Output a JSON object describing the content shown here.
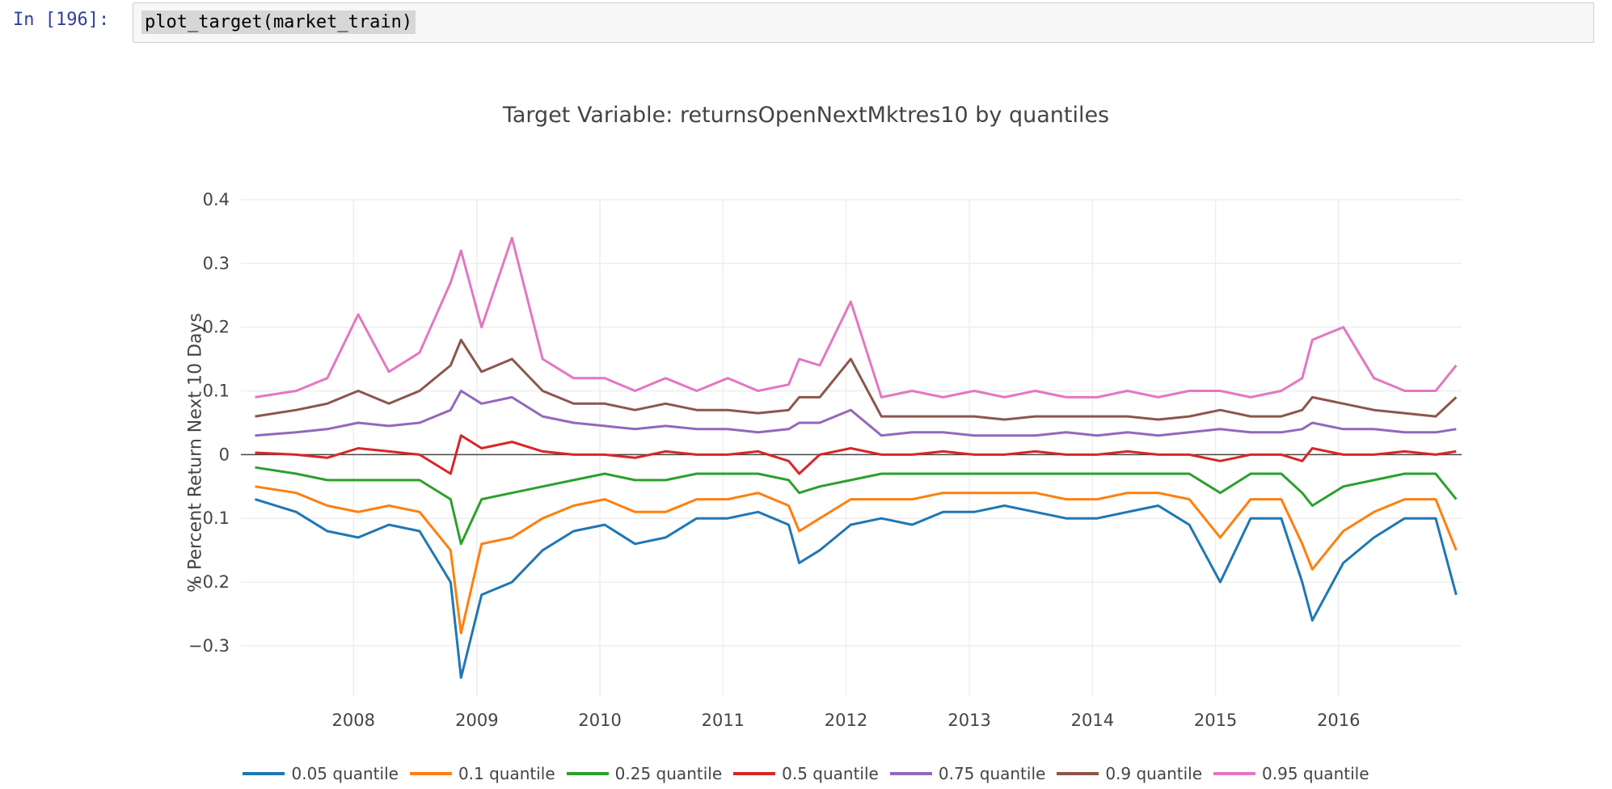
{
  "notebook": {
    "prompt": "In [196]:",
    "code": "plot_target(market_train)"
  },
  "chart_data": {
    "type": "line",
    "title": "Target Variable: returnsOpenNextMktres10 by quantiles",
    "xlabel": "",
    "ylabel": "% Percent Return Next 10 Days",
    "xlim": [
      "2007-02-01",
      "2016-12-31"
    ],
    "ylim": [
      -0.38,
      0.4
    ],
    "xticks": [
      "2008",
      "2009",
      "2010",
      "2011",
      "2012",
      "2013",
      "2014",
      "2015",
      "2016"
    ],
    "yticks": [
      "0.4",
      "0.3",
      "0.2",
      "0.1",
      "0",
      "−0.1",
      "−0.2",
      "−0.3"
    ],
    "ytick_values": [
      0.4,
      0.3,
      0.2,
      0.1,
      0,
      -0.1,
      -0.2,
      -0.3
    ],
    "grid": true,
    "legend_position": "bottom",
    "x": [
      "2007-03",
      "2007-07",
      "2007-10",
      "2008-01",
      "2008-04",
      "2008-07",
      "2008-10",
      "2008-11",
      "2009-01",
      "2009-04",
      "2009-07",
      "2009-10",
      "2010-01",
      "2010-04",
      "2010-07",
      "2010-10",
      "2011-01",
      "2011-04",
      "2011-07",
      "2011-08",
      "2011-10",
      "2012-01",
      "2012-04",
      "2012-07",
      "2012-10",
      "2013-01",
      "2013-04",
      "2013-07",
      "2013-10",
      "2014-01",
      "2014-04",
      "2014-07",
      "2014-10",
      "2015-01",
      "2015-04",
      "2015-07",
      "2015-09",
      "2015-10",
      "2016-01",
      "2016-04",
      "2016-07",
      "2016-10",
      "2016-12"
    ],
    "series": [
      {
        "name": "0.05 quantile",
        "color": "#1f77b4",
        "values": [
          -0.07,
          -0.09,
          -0.12,
          -0.13,
          -0.11,
          -0.12,
          -0.2,
          -0.35,
          -0.22,
          -0.2,
          -0.15,
          -0.12,
          -0.11,
          -0.14,
          -0.13,
          -0.1,
          -0.1,
          -0.09,
          -0.11,
          -0.17,
          -0.15,
          -0.11,
          -0.1,
          -0.11,
          -0.09,
          -0.09,
          -0.08,
          -0.09,
          -0.1,
          -0.1,
          -0.09,
          -0.08,
          -0.11,
          -0.2,
          -0.1,
          -0.1,
          -0.2,
          -0.26,
          -0.17,
          -0.13,
          -0.1,
          -0.1,
          -0.22
        ]
      },
      {
        "name": "0.1 quantile",
        "color": "#ff7f0e",
        "values": [
          -0.05,
          -0.06,
          -0.08,
          -0.09,
          -0.08,
          -0.09,
          -0.15,
          -0.28,
          -0.14,
          -0.13,
          -0.1,
          -0.08,
          -0.07,
          -0.09,
          -0.09,
          -0.07,
          -0.07,
          -0.06,
          -0.08,
          -0.12,
          -0.1,
          -0.07,
          -0.07,
          -0.07,
          -0.06,
          -0.06,
          -0.06,
          -0.06,
          -0.07,
          -0.07,
          -0.06,
          -0.06,
          -0.07,
          -0.13,
          -0.07,
          -0.07,
          -0.14,
          -0.18,
          -0.12,
          -0.09,
          -0.07,
          -0.07,
          -0.15
        ]
      },
      {
        "name": "0.25 quantile",
        "color": "#2ca02c",
        "values": [
          -0.02,
          -0.03,
          -0.04,
          -0.04,
          -0.04,
          -0.04,
          -0.07,
          -0.14,
          -0.07,
          -0.06,
          -0.05,
          -0.04,
          -0.03,
          -0.04,
          -0.04,
          -0.03,
          -0.03,
          -0.03,
          -0.04,
          -0.06,
          -0.05,
          -0.04,
          -0.03,
          -0.03,
          -0.03,
          -0.03,
          -0.03,
          -0.03,
          -0.03,
          -0.03,
          -0.03,
          -0.03,
          -0.03,
          -0.06,
          -0.03,
          -0.03,
          -0.06,
          -0.08,
          -0.05,
          -0.04,
          -0.03,
          -0.03,
          -0.07
        ]
      },
      {
        "name": "0.5 quantile",
        "color": "#d62728",
        "values": [
          0.003,
          0.0,
          -0.005,
          0.01,
          0.005,
          0.0,
          -0.03,
          0.03,
          0.01,
          0.02,
          0.005,
          0.0,
          0.0,
          -0.005,
          0.005,
          0.0,
          0.0,
          0.005,
          -0.01,
          -0.03,
          0.0,
          0.01,
          0.0,
          0.0,
          0.005,
          0.0,
          0.0,
          0.005,
          0.0,
          0.0,
          0.005,
          0.0,
          0.0,
          -0.01,
          0.0,
          0.0,
          -0.01,
          0.01,
          0.0,
          0.0,
          0.005,
          0.0,
          0.005
        ]
      },
      {
        "name": "0.75 quantile",
        "color": "#9467bd",
        "values": [
          0.03,
          0.035,
          0.04,
          0.05,
          0.045,
          0.05,
          0.07,
          0.1,
          0.08,
          0.09,
          0.06,
          0.05,
          0.045,
          0.04,
          0.045,
          0.04,
          0.04,
          0.035,
          0.04,
          0.05,
          0.05,
          0.07,
          0.03,
          0.035,
          0.035,
          0.03,
          0.03,
          0.03,
          0.035,
          0.03,
          0.035,
          0.03,
          0.035,
          0.04,
          0.035,
          0.035,
          0.04,
          0.05,
          0.04,
          0.04,
          0.035,
          0.035,
          0.04
        ]
      },
      {
        "name": "0.9 quantile",
        "color": "#8c564b",
        "values": [
          0.06,
          0.07,
          0.08,
          0.1,
          0.08,
          0.1,
          0.14,
          0.18,
          0.13,
          0.15,
          0.1,
          0.08,
          0.08,
          0.07,
          0.08,
          0.07,
          0.07,
          0.065,
          0.07,
          0.09,
          0.09,
          0.15,
          0.06,
          0.06,
          0.06,
          0.06,
          0.055,
          0.06,
          0.06,
          0.06,
          0.06,
          0.055,
          0.06,
          0.07,
          0.06,
          0.06,
          0.07,
          0.09,
          0.08,
          0.07,
          0.065,
          0.06,
          0.09
        ]
      },
      {
        "name": "0.95 quantile",
        "color": "#e377c2",
        "values": [
          0.09,
          0.1,
          0.12,
          0.22,
          0.13,
          0.16,
          0.27,
          0.32,
          0.2,
          0.34,
          0.15,
          0.12,
          0.12,
          0.1,
          0.12,
          0.1,
          0.12,
          0.1,
          0.11,
          0.15,
          0.14,
          0.24,
          0.09,
          0.1,
          0.09,
          0.1,
          0.09,
          0.1,
          0.09,
          0.09,
          0.1,
          0.09,
          0.1,
          0.1,
          0.09,
          0.1,
          0.12,
          0.18,
          0.2,
          0.12,
          0.1,
          0.1,
          0.14
        ]
      }
    ]
  }
}
